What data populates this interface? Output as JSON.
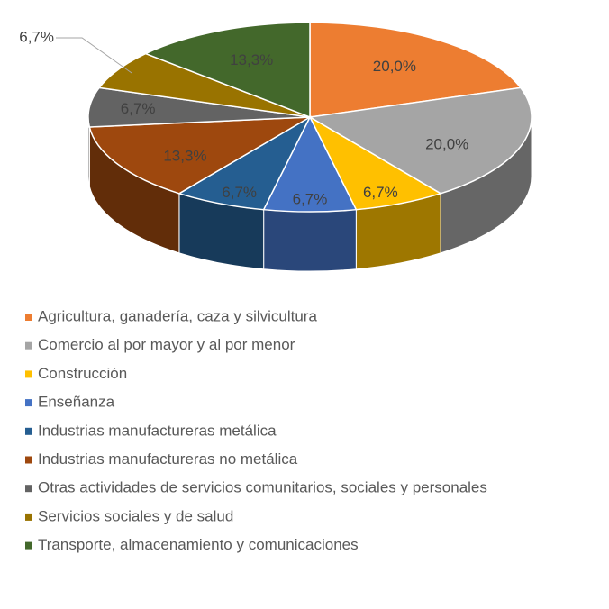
{
  "chart_data": {
    "type": "pie",
    "categories": [
      "Agricultura, ganadería, caza y silvicultura",
      "Comercio al por mayor y al por menor",
      "Construcción",
      "Enseñanza",
      "Industrias manufactureras metálica",
      "Industrias manufactureras no metálica",
      "Otras actividades de servicios comunitarios, sociales y personales",
      "Servicios sociales y de salud",
      "Transporte, almacenamiento y comunicaciones"
    ],
    "values": [
      20.0,
      20.0,
      6.7,
      6.7,
      6.7,
      13.3,
      6.7,
      6.7,
      13.3
    ],
    "value_labels": [
      "20,0%",
      "20,0%",
      "6,7%",
      "6,7%",
      "6,7%",
      "13,3%",
      "6,7%",
      "6,7%",
      "13,3%"
    ],
    "colors": [
      "#ed7d31",
      "#a5a5a5",
      "#ffc000",
      "#4472c4",
      "#255e91",
      "#9e480e",
      "#636363",
      "#997300",
      "#43682b"
    ],
    "legend": "bottom"
  }
}
